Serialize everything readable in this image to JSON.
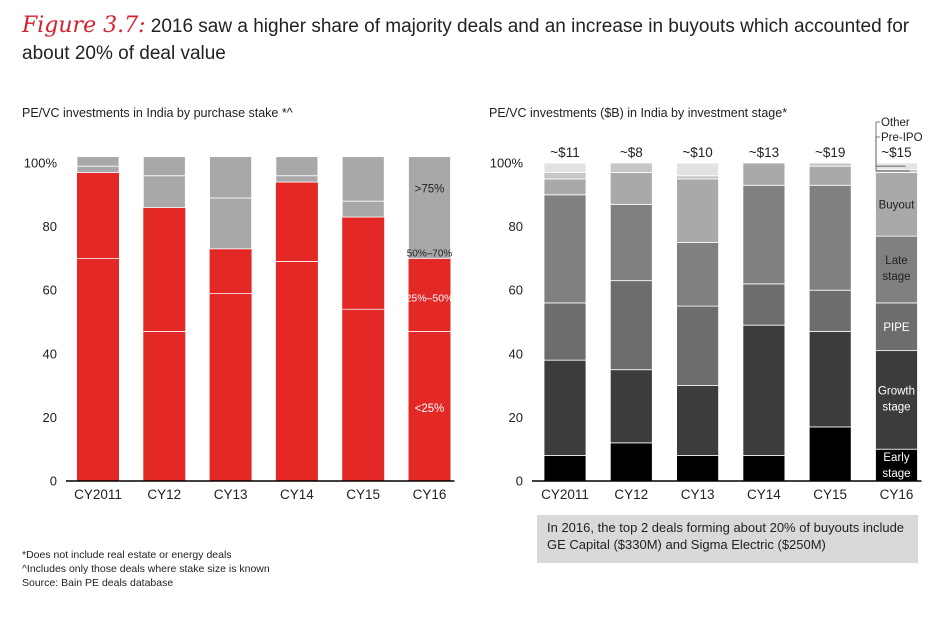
{
  "figure": {
    "label": "Figure 3.7:",
    "title": "2016 saw a higher share of majority deals and an increase in buyouts which accounted for about 20% of deal value"
  },
  "colors": {
    "red": "#e32826",
    "lightgray": "#a8a8aa",
    "black": "#000000",
    "darkgray": "#3c3c3d",
    "midgray": "#6d6d70",
    "gray2": "#808083",
    "gray3": "#a9a9ab",
    "gray4": "#c6c6c8",
    "gray5": "#e2e2e4"
  },
  "chart_data": [
    {
      "type": "bar",
      "stacked": true,
      "title": "PE/VC investments in India by purchase stake *^",
      "ylim": [
        0,
        100
      ],
      "yticks": [
        "100%",
        "80",
        "60",
        "40",
        "20",
        "0"
      ],
      "categories": [
        "CY2011",
        "CY12",
        "CY13",
        "CY14",
        "CY15",
        "CY16"
      ],
      "series": [
        {
          "name": "<25%",
          "values": [
            70,
            47,
            59,
            69,
            54,
            47
          ]
        },
        {
          "name": "25%–50%",
          "values": [
            27,
            39,
            14,
            25,
            29,
            23
          ]
        },
        {
          "name": "50%–70%",
          "values": [
            2,
            10,
            16,
            2,
            5,
            0
          ]
        },
        {
          "name": ">75%",
          "values": [
            3,
            6,
            13,
            6,
            14,
            32
          ]
        }
      ],
      "series_labels": [
        ">75%",
        "50%–70%",
        "25%–50%",
        "<25%"
      ]
    },
    {
      "type": "bar",
      "stacked": true,
      "title": "PE/VC investments ($B) in India by investment stage*",
      "ylim": [
        0,
        100
      ],
      "yticks": [
        "100%",
        "80",
        "60",
        "40",
        "20",
        "0"
      ],
      "categories": [
        "CY2011",
        "CY12",
        "CY13",
        "CY14",
        "CY15",
        "CY16"
      ],
      "totals": [
        "~$11",
        "~$8",
        "~$10",
        "~$13",
        "~$19",
        "~$15"
      ],
      "series": [
        {
          "name": "Early stage",
          "values": [
            8,
            12,
            8,
            8,
            17,
            10
          ]
        },
        {
          "name": "Growth stage",
          "values": [
            30,
            23,
            22,
            41,
            30,
            31
          ]
        },
        {
          "name": "PIPE",
          "values": [
            18,
            28,
            25,
            13,
            13,
            15
          ]
        },
        {
          "name": "Late stage",
          "values": [
            34,
            24,
            20,
            31,
            33,
            21
          ]
        },
        {
          "name": "Buyout",
          "values": [
            5,
            10,
            20,
            7,
            6,
            20
          ]
        },
        {
          "name": "Pre-IPO",
          "values": [
            2,
            3,
            1,
            0,
            1,
            1
          ]
        },
        {
          "name": "Other",
          "values": [
            3,
            0,
            4,
            0,
            0,
            2
          ]
        }
      ],
      "legend_labels": [
        "Other",
        "Pre-IPO",
        "Buyout",
        "Late stage",
        "PIPE",
        "Growth stage",
        "Early stage"
      ]
    }
  ],
  "note": "In 2016, the top 2 deals forming about 20% of buyouts include GE Capital ($330M) and Sigma Electric ($250M)",
  "footnotes": [
    "*Does not include real estate or energy deals",
    "^Includes only those deals where stake size is known",
    "Source: Bain PE deals database"
  ]
}
